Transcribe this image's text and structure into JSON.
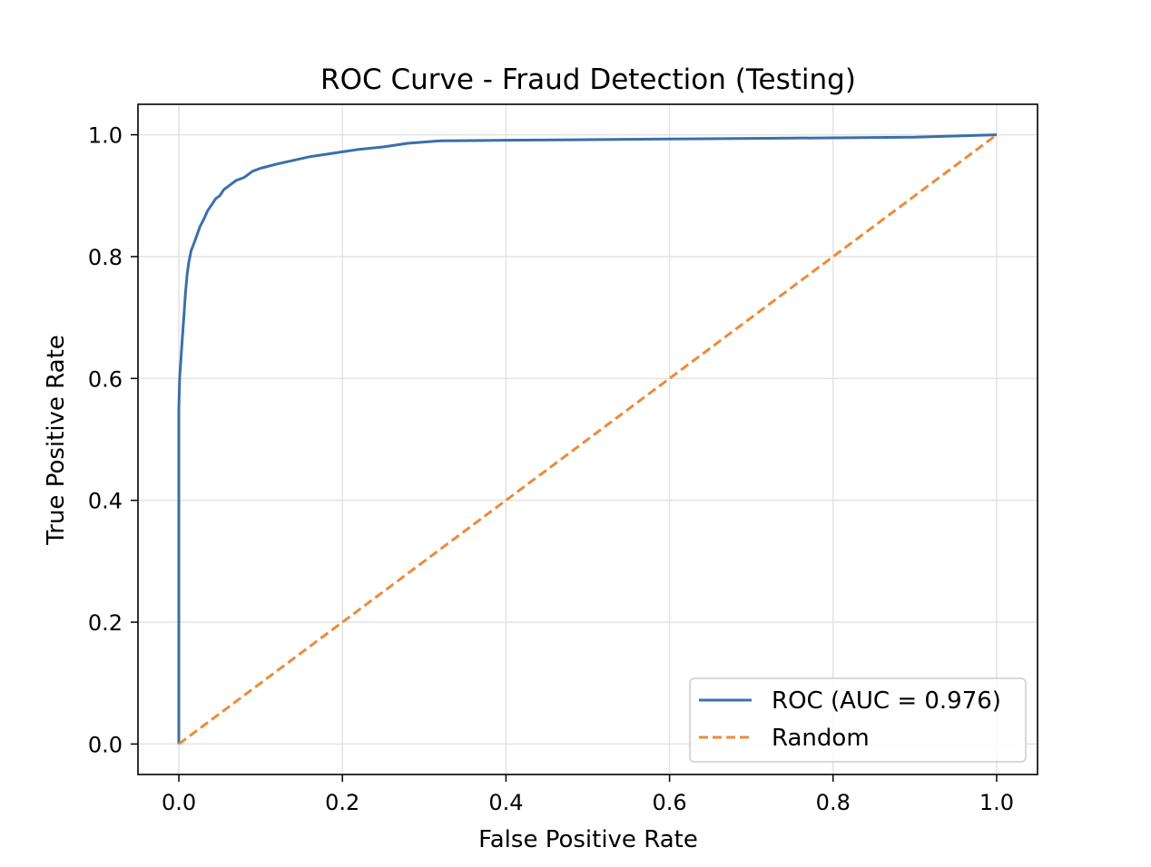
{
  "chart_data": {
    "type": "line",
    "title": "ROC Curve - Fraud Detection (Testing)",
    "xlabel": "False Positive Rate",
    "ylabel": "True Positive Rate",
    "xlim": [
      -0.05,
      1.05
    ],
    "ylim": [
      -0.05,
      1.05
    ],
    "xticks": [
      0.0,
      0.2,
      0.4,
      0.6,
      0.8,
      1.0
    ],
    "yticks": [
      0.0,
      0.2,
      0.4,
      0.6,
      0.8,
      1.0
    ],
    "xtick_labels": [
      "0.0",
      "0.2",
      "0.4",
      "0.6",
      "0.8",
      "1.0"
    ],
    "ytick_labels": [
      "0.0",
      "0.2",
      "0.4",
      "0.6",
      "0.8",
      "1.0"
    ],
    "grid": true,
    "legend_position": "lower-right",
    "series": [
      {
        "name": "ROC (AUC = 0.976)",
        "color": "#3a70aa",
        "style": "solid",
        "x": [
          0.0,
          0.0,
          0.001,
          0.002,
          0.004,
          0.006,
          0.008,
          0.01,
          0.012,
          0.015,
          0.018,
          0.022,
          0.026,
          0.03,
          0.035,
          0.04,
          0.045,
          0.05,
          0.055,
          0.06,
          0.07,
          0.08,
          0.09,
          0.1,
          0.12,
          0.14,
          0.16,
          0.18,
          0.2,
          0.22,
          0.25,
          0.28,
          0.32,
          0.4,
          0.5,
          0.6,
          0.7,
          0.8,
          0.9,
          1.0
        ],
        "y": [
          0.0,
          0.55,
          0.6,
          0.62,
          0.66,
          0.7,
          0.74,
          0.77,
          0.79,
          0.81,
          0.82,
          0.835,
          0.85,
          0.86,
          0.875,
          0.885,
          0.895,
          0.9,
          0.91,
          0.915,
          0.925,
          0.93,
          0.94,
          0.945,
          0.952,
          0.958,
          0.964,
          0.968,
          0.972,
          0.976,
          0.98,
          0.986,
          0.99,
          0.991,
          0.992,
          0.993,
          0.994,
          0.995,
          0.996,
          1.0
        ]
      },
      {
        "name": "Random",
        "color": "#ee8a3a",
        "style": "dashed",
        "x": [
          0.0,
          1.0
        ],
        "y": [
          0.0,
          1.0
        ]
      }
    ]
  }
}
